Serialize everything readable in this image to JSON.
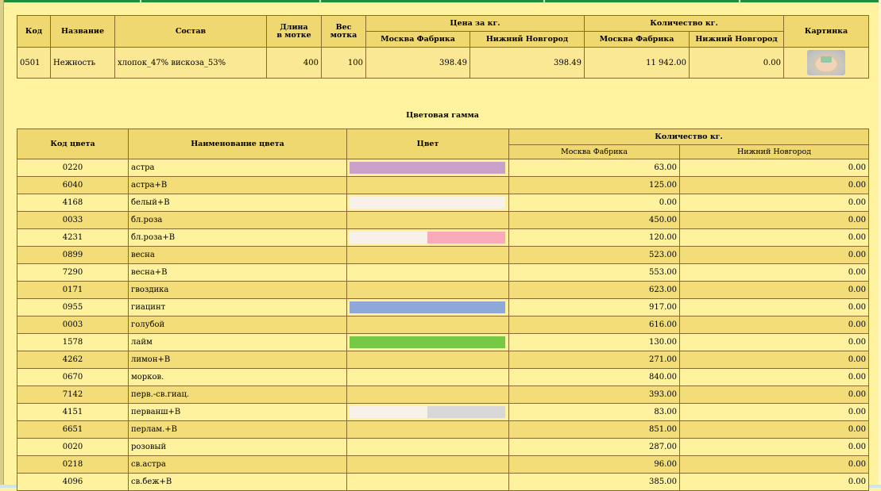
{
  "product_table": {
    "headers": {
      "code": "Код",
      "name": "Название",
      "composition": "Состав",
      "length": "Длина",
      "length_unit": "в мотке",
      "weight": "Вес",
      "weight_unit": "мотка",
      "price": "Цена за кг.",
      "quantity": "Количество кг.",
      "picture": "Картинка",
      "moscow": "Москва Фабрика",
      "nnovgorod": "Нижний Новгород"
    },
    "row": {
      "code": "0501",
      "name": "Нежность",
      "composition": "хлопок_47% вискоза_53%",
      "length": "400",
      "weight": "100",
      "price_moscow": "398.49",
      "price_nnovgorod": "398.49",
      "qty_moscow": "11 942.00",
      "qty_nnovgorod": "0.00",
      "picture_icon": "yarn-skein-thumbnail"
    }
  },
  "palette_title": "Цветовая гамма",
  "color_table": {
    "headers": {
      "code": "Код цвета",
      "name": "Наименование цвета",
      "color": "Цвет",
      "quantity": "Количество кг.",
      "moscow": "Москва Фабрика",
      "nnovgorod": "Нижний Новгород"
    },
    "rows": [
      {
        "code": "0220",
        "name": "астра",
        "swatch": [
          "#c8a0c8"
        ],
        "moscow": "63.00",
        "nnovgorod": "0.00"
      },
      {
        "code": "6040",
        "name": "астра+В",
        "swatch": [],
        "moscow": "125.00",
        "nnovgorod": "0.00"
      },
      {
        "code": "4168",
        "name": "белый+В",
        "swatch": [
          "#f7f1ea"
        ],
        "moscow": "0.00",
        "nnovgorod": "0.00"
      },
      {
        "code": "0033",
        "name": "бл.роза",
        "swatch": [],
        "moscow": "450.00",
        "nnovgorod": "0.00"
      },
      {
        "code": "4231",
        "name": "бл.роза+В",
        "swatch": [
          "#f7f1ea",
          "#f8aab8"
        ],
        "moscow": "120.00",
        "nnovgorod": "0.00"
      },
      {
        "code": "0899",
        "name": "весна",
        "swatch": [],
        "moscow": "523.00",
        "nnovgorod": "0.00"
      },
      {
        "code": "7290",
        "name": "весна+В",
        "swatch": [],
        "moscow": "553.00",
        "nnovgorod": "0.00"
      },
      {
        "code": "0171",
        "name": "гвоздика",
        "swatch": [],
        "moscow": "623.00",
        "nnovgorod": "0.00"
      },
      {
        "code": "0955",
        "name": "гиацинт",
        "swatch": [
          "#90a8d8"
        ],
        "moscow": "917.00",
        "nnovgorod": "0.00"
      },
      {
        "code": "0003",
        "name": "голубой",
        "swatch": [],
        "moscow": "616.00",
        "nnovgorod": "0.00"
      },
      {
        "code": "1578",
        "name": "лайм",
        "swatch": [
          "#78c848"
        ],
        "moscow": "130.00",
        "nnovgorod": "0.00"
      },
      {
        "code": "4262",
        "name": "лимон+В",
        "swatch": [],
        "moscow": "271.00",
        "nnovgorod": "0.00"
      },
      {
        "code": "0670",
        "name": "морков.",
        "swatch": [],
        "moscow": "840.00",
        "nnovgorod": "0.00"
      },
      {
        "code": "7142",
        "name": "перв.-св.гиац.",
        "swatch": [],
        "moscow": "393.00",
        "nnovgorod": "0.00"
      },
      {
        "code": "4151",
        "name": "перванш+В",
        "swatch": [
          "#f7f1ea",
          "#d8d8d8"
        ],
        "moscow": "83.00",
        "nnovgorod": "0.00"
      },
      {
        "code": "6651",
        "name": "перлам.+В",
        "swatch": [],
        "moscow": "851.00",
        "nnovgorod": "0.00"
      },
      {
        "code": "0020",
        "name": "розовый",
        "swatch": [],
        "moscow": "287.00",
        "nnovgorod": "0.00"
      },
      {
        "code": "0218",
        "name": "св.астра",
        "swatch": [],
        "moscow": "96.00",
        "nnovgorod": "0.00"
      },
      {
        "code": "4096",
        "name": "св.беж+В",
        "swatch": [],
        "moscow": "385.00",
        "nnovgorod": "0.00"
      }
    ]
  }
}
